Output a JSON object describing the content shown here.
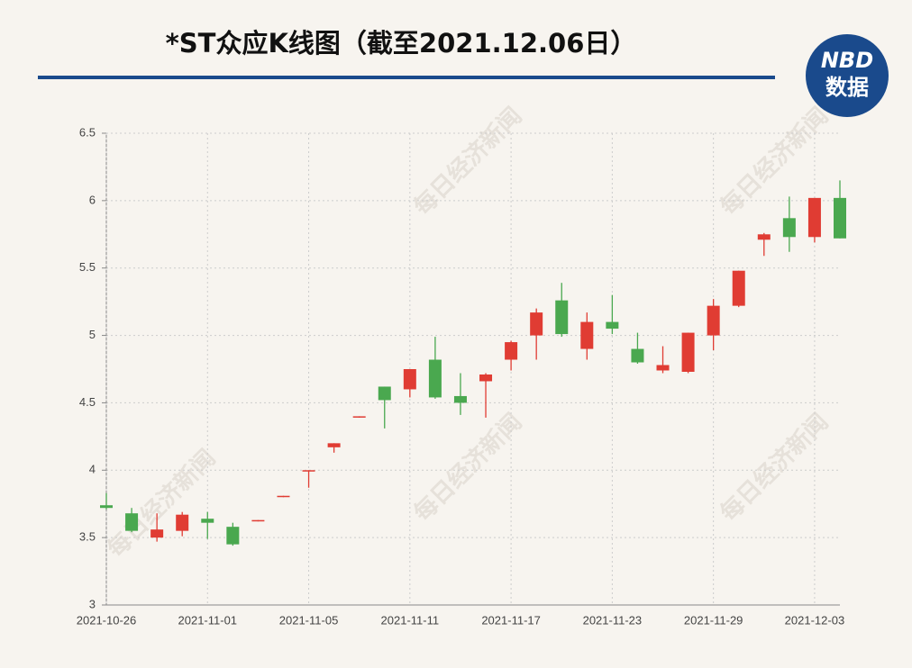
{
  "chart_data": {
    "type": "candlestick",
    "title": "*ST众应K线图（截至2021.12.06日）",
    "watermark": "每日经济新闻",
    "categories": [
      "2021-10-26",
      null,
      null,
      null,
      "2021-11-01",
      null,
      null,
      null,
      "2021-11-05",
      null,
      null,
      null,
      "2021-11-11",
      null,
      null,
      null,
      "2021-11-17",
      null,
      null,
      null,
      "2021-11-23",
      null,
      null,
      null,
      "2021-11-29",
      null,
      null,
      null,
      "2021-12-03",
      null
    ],
    "open": [
      3.74,
      3.68,
      3.5,
      3.55,
      3.64,
      3.58,
      3.62,
      3.8,
      3.99,
      4.17,
      4.39,
      4.62,
      4.6,
      4.82,
      4.55,
      4.66,
      4.82,
      5.0,
      5.26,
      4.9,
      5.1,
      4.9,
      4.74,
      4.73,
      5.0,
      5.22,
      5.71,
      5.87,
      5.73,
      6.02
    ],
    "high": [
      3.83,
      3.72,
      3.68,
      3.69,
      3.69,
      3.61,
      3.63,
      3.81,
      4.0,
      4.2,
      4.4,
      4.62,
      4.75,
      4.99,
      4.72,
      4.72,
      4.96,
      5.2,
      5.39,
      5.17,
      5.3,
      5.02,
      4.92,
      5.02,
      5.27,
      5.48,
      5.76,
      6.03,
      6.02,
      6.15
    ],
    "low": [
      3.71,
      3.54,
      3.47,
      3.51,
      3.49,
      3.44,
      3.62,
      3.8,
      3.87,
      4.13,
      4.39,
      4.31,
      4.54,
      4.53,
      4.41,
      4.39,
      4.74,
      4.82,
      4.99,
      4.82,
      5.01,
      4.79,
      4.72,
      4.72,
      4.89,
      5.21,
      5.59,
      5.62,
      5.69,
      5.72
    ],
    "close": [
      3.72,
      3.55,
      3.56,
      3.67,
      3.61,
      3.45,
      3.63,
      3.81,
      4.0,
      4.2,
      4.4,
      4.52,
      4.75,
      4.54,
      4.5,
      4.71,
      4.95,
      5.17,
      5.01,
      5.1,
      5.05,
      4.8,
      4.78,
      5.02,
      5.22,
      5.48,
      5.75,
      5.73,
      6.02,
      5.72
    ],
    "up_color": "#e03c33",
    "down_color": "#4aa84f",
    "ylim": [
      3,
      6.5
    ],
    "yticks": [
      3,
      3.5,
      4,
      4.5,
      5,
      5.5,
      6,
      6.5
    ],
    "grid": true
  },
  "logo": {
    "top": "NBD",
    "bottom": "数据"
  }
}
